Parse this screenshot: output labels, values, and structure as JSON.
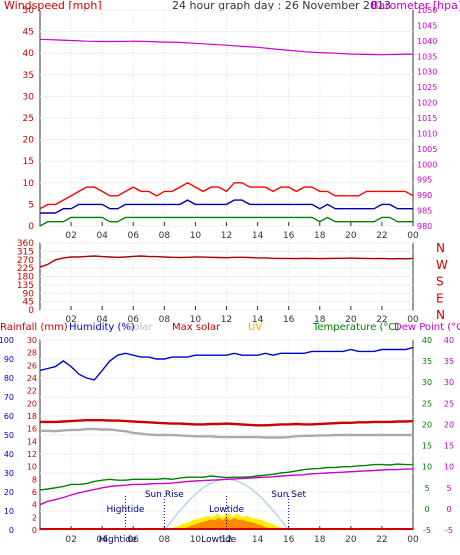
{
  "chart_data": [
    {
      "type": "line",
      "title": "24 hour graph day : 26 November 2013",
      "left_label": "Windspeed [mph]",
      "right_label": "Barometer [hpa]",
      "x_ticks": [
        "02",
        "04",
        "06",
        "08",
        "10",
        "12",
        "14",
        "16",
        "18",
        "20",
        "22",
        "00"
      ],
      "y_left_ticks": [
        "0",
        "5",
        "10",
        "15",
        "20",
        "25",
        "30",
        "35",
        "40",
        "45",
        "50"
      ],
      "y_left_range": [
        0,
        50
      ],
      "y_right_ticks": [
        "980",
        "985",
        "990",
        "995",
        "1000",
        "1005",
        "1010",
        "1015",
        "1020",
        "1025",
        "1030",
        "1035",
        "1040",
        "1045",
        "1050"
      ],
      "y_right_range": [
        980,
        1050
      ],
      "series": [
        {
          "key": "gust",
          "color": "#ff0000",
          "values": [
            4,
            5,
            5,
            6,
            7,
            8,
            9,
            9,
            8,
            7,
            7,
            8,
            9,
            8,
            8,
            7,
            8,
            8,
            9,
            10,
            9,
            8,
            9,
            9,
            8,
            10,
            10,
            9,
            9,
            9,
            8,
            9,
            9,
            8,
            9,
            9,
            8,
            8,
            7,
            7,
            7,
            7,
            8,
            8,
            8,
            8,
            8,
            8,
            7
          ]
        },
        {
          "key": "avg",
          "color": "#0000aa",
          "values": [
            3,
            3,
            3,
            4,
            4,
            5,
            5,
            5,
            5,
            4,
            4,
            5,
            5,
            5,
            5,
            5,
            5,
            5,
            5,
            6,
            5,
            5,
            5,
            5,
            5,
            6,
            6,
            5,
            5,
            5,
            5,
            5,
            5,
            5,
            5,
            5,
            4,
            5,
            4,
            4,
            4,
            4,
            4,
            4,
            5,
            5,
            4,
            4,
            4
          ]
        },
        {
          "key": "low",
          "color": "#008000",
          "values": [
            0,
            1,
            1,
            1,
            2,
            2,
            2,
            2,
            2,
            1,
            1,
            2,
            2,
            2,
            2,
            2,
            2,
            2,
            2,
            2,
            2,
            2,
            2,
            2,
            2,
            2,
            2,
            2,
            2,
            2,
            2,
            2,
            2,
            2,
            2,
            2,
            1,
            2,
            1,
            1,
            1,
            1,
            1,
            1,
            2,
            2,
            1,
            1,
            1
          ]
        },
        {
          "key": "barometer",
          "color": "#cc00cc",
          "values": [
            1040.5,
            1040.3,
            1040.1,
            1039.9,
            1039.8,
            1039.8,
            1039.9,
            1039.8,
            1039.6,
            1039.5,
            1039.2,
            1038.9,
            1038.6,
            1038.2,
            1037.9,
            1037.4,
            1036.9,
            1036.5,
            1036.2,
            1036.0,
            1035.7,
            1035.6,
            1035.5,
            1035.6,
            1035.7
          ]
        }
      ]
    },
    {
      "type": "line",
      "title": "",
      "y_ticks": [
        "0",
        "45",
        "90",
        "135",
        "180",
        "225",
        "270",
        "315",
        "360"
      ],
      "y_range": [
        0,
        360
      ],
      "x_ticks": [
        "02",
        "04",
        "06",
        "08",
        "10",
        "12",
        "14",
        "16",
        "18",
        "20",
        "22",
        "00"
      ],
      "compass": [
        "N",
        "W",
        "S",
        "E",
        "N"
      ],
      "series": [
        {
          "key": "direction",
          "color": "#aa0000",
          "values": [
            230,
            245,
            270,
            280,
            285,
            285,
            288,
            290,
            287,
            285,
            283,
            285,
            288,
            290,
            287,
            287,
            285,
            283,
            282,
            283,
            285,
            284,
            283,
            282,
            281,
            283,
            283,
            282,
            280,
            280,
            278,
            277,
            277,
            276,
            278,
            277,
            276,
            277,
            278,
            278,
            279,
            278,
            277,
            276,
            277,
            275,
            276,
            275,
            277
          ]
        }
      ]
    },
    {
      "type": "line",
      "headers": {
        "rainfall": "Rainfall (mm)",
        "humidity": "Humidity (%)",
        "solar": "Solar",
        "max_solar": "Max solar",
        "uv": "UV",
        "temperature": "Temperature (°C)",
        "dew_point": "Dew Point (°C)"
      },
      "header_colors": {
        "rainfall": "#cc0000",
        "humidity": "#0000cc",
        "solar": "#bbbbbb",
        "max_solar": "#cc0000",
        "uv": "#ffaa00",
        "temperature": "#008000",
        "dew_point": "#cc00cc"
      },
      "x_ticks": [
        "02",
        "04",
        "06",
        "08",
        "10",
        "12",
        "14",
        "16",
        "18",
        "20",
        "22",
        "00"
      ],
      "humidity_ticks": [
        "0",
        "10",
        "20",
        "30",
        "40",
        "50",
        "60",
        "70",
        "80",
        "90",
        "100"
      ],
      "rain_ticks": [
        "0",
        "2",
        "4",
        "6",
        "8",
        "10",
        "12",
        "14",
        "16",
        "18",
        "20",
        "22",
        "24",
        "26",
        "28",
        "30"
      ],
      "temp_ticks": [
        "-5",
        "0",
        "5",
        "10",
        "15",
        "20",
        "25",
        "30",
        "35",
        "40"
      ],
      "temp_range": [
        -5,
        40
      ],
      "markers": [
        {
          "label": "Hightide",
          "time": 5.5,
          "row": 1
        },
        {
          "label": "Sun Rise",
          "time": 8.0,
          "row": 0
        },
        {
          "label": "Lowtide",
          "time": 12.0,
          "row": 1
        },
        {
          "label": "Sun Set",
          "time": 16.0,
          "row": 0
        },
        {
          "label": "Hightide",
          "time": 5.0,
          "row": 2
        },
        {
          "label": "Lowtide",
          "time": 11.5,
          "row": 2
        }
      ],
      "series": [
        {
          "key": "humidity",
          "color": "#0000cc",
          "values": [
            84,
            85,
            86,
            89,
            86,
            82,
            80,
            79,
            84,
            89,
            92,
            93,
            92,
            91,
            91,
            90,
            90,
            91,
            91,
            91,
            92,
            92,
            92,
            92,
            92,
            93,
            92,
            92,
            92,
            93,
            92,
            93,
            93,
            93,
            93,
            94,
            94,
            94,
            94,
            94,
            95,
            94,
            94,
            94,
            95,
            95,
            95,
            95,
            96
          ]
        },
        {
          "key": "temperature",
          "color": "#008000",
          "values": [
            4.5,
            4.7,
            5.0,
            5.3,
            5.8,
            5.8,
            6.0,
            6.5,
            6.8,
            7.0,
            6.8,
            6.8,
            7.0,
            7.0,
            7.0,
            7.0,
            7.2,
            7.0,
            7.3,
            7.5,
            7.5,
            7.5,
            7.8,
            7.6,
            7.4,
            7.5,
            7.5,
            7.6,
            7.8,
            8.0,
            8.2,
            8.5,
            8.7,
            9.0,
            9.3,
            9.5,
            9.6,
            9.8,
            9.8,
            10.0,
            10.0,
            10.2,
            10.3,
            10.5,
            10.5,
            10.4,
            10.6,
            10.5,
            10.5
          ]
        },
        {
          "key": "dew_point",
          "color": "#cc00cc",
          "values": [
            1.0,
            1.8,
            2.2,
            2.7,
            3.3,
            3.8,
            4.2,
            4.6,
            5.0,
            5.3,
            5.5,
            5.6,
            5.8,
            5.8,
            5.9,
            6.0,
            6.0,
            6.1,
            6.3,
            6.5,
            6.6,
            6.7,
            6.8,
            6.9,
            7.0,
            7.1,
            7.2,
            7.3,
            7.4,
            7.5,
            7.6,
            7.8,
            7.9,
            8.0,
            8.1,
            8.3,
            8.4,
            8.5,
            8.6,
            8.7,
            8.8,
            8.9,
            9.0,
            9.1,
            9.2,
            9.3,
            9.3,
            9.4,
            9.5
          ]
        },
        {
          "key": "max_solar_line",
          "color": "#cc0000",
          "values": [
            20.6,
            20.6,
            20.6,
            20.7,
            20.8,
            20.9,
            21.0,
            21.0,
            21.0,
            20.9,
            20.9,
            20.8,
            20.7,
            20.6,
            20.5,
            20.4,
            20.3,
            20.2,
            20.2,
            20.1,
            20.0,
            20.0,
            20.1,
            20.1,
            20.2,
            20.1,
            20.0,
            19.9,
            19.8,
            19.8,
            19.9,
            20.0,
            20.0,
            20.1,
            20.0,
            20.0,
            20.1,
            20.2,
            20.3,
            20.4,
            20.4,
            20.5,
            20.5,
            20.6,
            20.6,
            20.6,
            20.7,
            20.7,
            20.8
          ]
        },
        {
          "key": "solar_line",
          "color": "#aaaaaa",
          "values": [
            18.5,
            18.5,
            18.4,
            18.6,
            18.7,
            18.7,
            18.9,
            18.9,
            18.8,
            18.8,
            18.6,
            18.4,
            18.0,
            17.8,
            17.6,
            17.5,
            17.5,
            17.5,
            17.4,
            17.3,
            17.2,
            17.2,
            17.2,
            17.0,
            17.0,
            17.0,
            17.0,
            17.0,
            17.0,
            16.9,
            16.9,
            16.9,
            17.0,
            17.2,
            17.3,
            17.3,
            17.4,
            17.4,
            17.5,
            17.5,
            17.5,
            17.5,
            17.5,
            17.5,
            17.5,
            17.5,
            17.5,
            17.5,
            17.5
          ]
        }
      ],
      "rain": [
        0.0,
        0.0,
        0.0,
        0.0,
        0.0,
        0.0,
        0.0,
        0.0,
        0.0,
        0.0,
        0.0,
        0.0,
        0.0,
        0.0,
        0.0,
        0.0,
        0.0,
        0.0,
        0.0,
        0.0,
        0.0,
        0.0,
        0.0,
        0.0,
        0.0,
        0.0,
        0.0,
        0.0,
        0.0,
        0.0,
        0.0,
        0.0,
        0.0,
        0.0,
        0.0,
        0.0,
        0.0,
        0.0,
        0.0,
        0.0,
        0.0,
        0.0,
        0.0,
        0.0,
        0.0,
        0.0,
        0.0,
        0.0,
        0.0
      ],
      "solar_fill": {
        "start": 8.2,
        "end": 15.9,
        "peak": 4,
        "color": "#ffee00"
      },
      "uv_fill": {
        "start": 9.0,
        "end": 15.0,
        "peak": 3,
        "color": "#ff8800"
      },
      "clear_sky": {
        "start": 8.0,
        "end": 16.0,
        "peak": 12,
        "color": "#aaccee"
      }
    }
  ]
}
